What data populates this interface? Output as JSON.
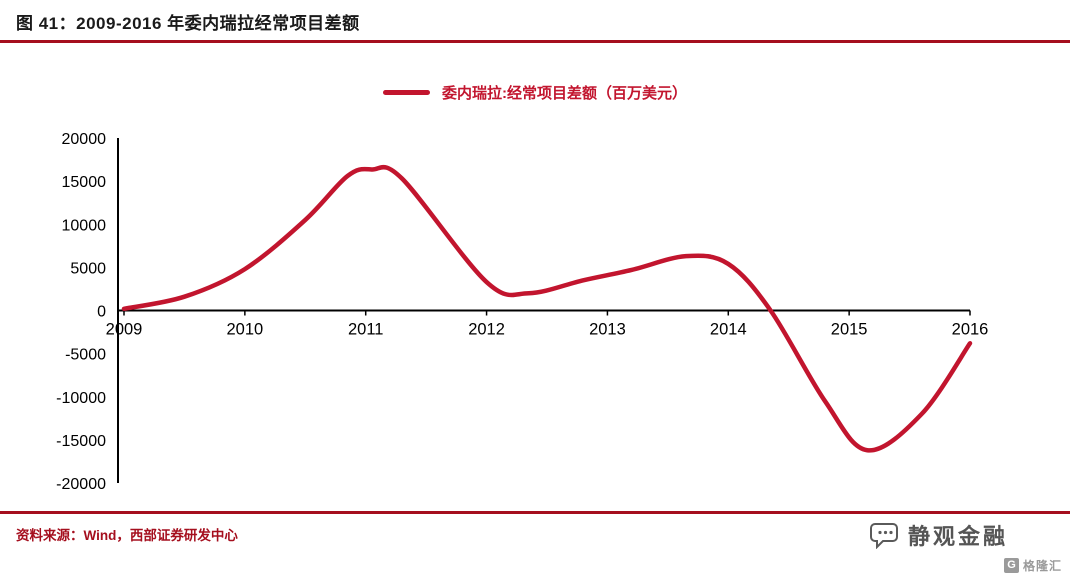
{
  "page": {
    "title": "图 41：2009-2016 年委内瑞拉经常项目差额",
    "footer_source": "资料来源：Wind，西部证券研发中心",
    "brand_logo_text": "静观金融",
    "watermark_badge": "G",
    "watermark_text": "格隆汇"
  },
  "colors": {
    "accent_line": "#c2152e",
    "rule_red": "#a50f1e",
    "axis_black": "#000000",
    "title_ink": "#1a1a1a",
    "brand_gray": "#555555"
  },
  "chart_data": {
    "type": "line",
    "title": "委内瑞拉经常项目差额",
    "legend": {
      "position": "top-center",
      "entries": [
        {
          "label": "委内瑞拉:经常项目差额（百万美元）",
          "color": "#c2152e"
        }
      ]
    },
    "xlabel": "",
    "ylabel": "百万美元",
    "x": [
      2009,
      2010,
      2011,
      2012,
      2013,
      2014,
      2015,
      2016
    ],
    "series": [
      {
        "name": "委内瑞拉:经常项目差额（百万美元）",
        "color": "#c2152e",
        "values": [
          300,
          4800,
          16300,
          3000,
          4500,
          5200,
          -16000,
          -3800
        ]
      }
    ],
    "annotations": {
      "peak": {
        "x": 2011,
        "y": 16300
      },
      "local_min": {
        "x": 2012.35,
        "y": 2000
      },
      "local_max": {
        "x": 2013.65,
        "y": 6300
      },
      "zero_crossing": {
        "x": 2014.35,
        "y": 0
      },
      "trough": {
        "x": 2015.15,
        "y": -16200
      }
    },
    "curve_points": [
      [
        2009,
        200
      ],
      [
        2009.5,
        1600
      ],
      [
        2010,
        4800
      ],
      [
        2010.5,
        10500
      ],
      [
        2010.85,
        15600
      ],
      [
        2011.05,
        16350
      ],
      [
        2011.3,
        15300
      ],
      [
        2012,
        3300
      ],
      [
        2012.35,
        2000
      ],
      [
        2012.8,
        3500
      ],
      [
        2013.2,
        4700
      ],
      [
        2013.65,
        6300
      ],
      [
        2014,
        5400
      ],
      [
        2014.35,
        0
      ],
      [
        2014.8,
        -10500
      ],
      [
        2015.15,
        -16200
      ],
      [
        2015.6,
        -12000
      ],
      [
        2016,
        -3800
      ]
    ],
    "xlim": [
      2009,
      2016
    ],
    "ylim": [
      -20000,
      20000
    ],
    "yticks": [
      20000,
      15000,
      10000,
      5000,
      0,
      -5000,
      -10000,
      -15000,
      -20000
    ],
    "xtick_labels": [
      "2009",
      "2010",
      "2011",
      "2012",
      "2013",
      "2014",
      "2015",
      "2016"
    ],
    "grid": false
  }
}
